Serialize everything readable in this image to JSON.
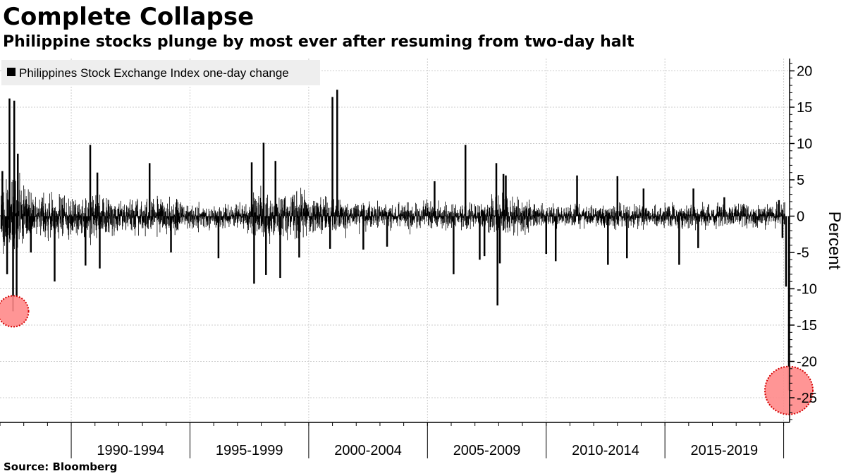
{
  "colors": {
    "series": "#000000",
    "grid": "#cccccc",
    "highlight_fill": "#ff8a8a",
    "highlight_stroke": "#d40000",
    "legend_bg": "#eeeeee"
  },
  "chart_data": {
    "type": "bar",
    "title": "Complete Collapse",
    "subtitle": "Philippine stocks plunge by most ever after resuming from two-day halt",
    "source": "Source:  Bloomberg",
    "legend": "Philippines Stock Exchange Index one-day change",
    "legend_position": "top-left",
    "ylabel": "Percent",
    "ylim": [
      -28,
      22
    ],
    "yticks": [
      20,
      15,
      10,
      5,
      0,
      -5,
      -10,
      -15,
      -20,
      -25
    ],
    "ytick_labels": [
      "20",
      "15",
      "10",
      "5",
      "0",
      "-5",
      "-10",
      "-15",
      "-20",
      "-25"
    ],
    "xlim": [
      1987.0,
      2020.25
    ],
    "x_period_boundaries": [
      1990,
      1995,
      2000,
      2005,
      2010,
      2015,
      2020
    ],
    "x_period_labels": [
      "1990-1994",
      "1995-1999",
      "2000-2004",
      "2005-2009",
      "2010-2014",
      "2015-2019"
    ],
    "grid": true,
    "typical_daily_range": [
      -2,
      2
    ],
    "notable_moves": [
      {
        "x": 1987.4,
        "value": 16.2
      },
      {
        "x": 1987.55,
        "value": -13.1
      },
      {
        "x": 1987.6,
        "value": 15.9
      },
      {
        "x": 1987.7,
        "value": -11.0
      },
      {
        "x": 1987.75,
        "value": 8.6
      },
      {
        "x": 1987.3,
        "value": -8.0
      },
      {
        "x": 1987.1,
        "value": 6.2
      },
      {
        "x": 1988.3,
        "value": -5.0
      },
      {
        "x": 1989.3,
        "value": -9.0
      },
      {
        "x": 1990.6,
        "value": -6.8
      },
      {
        "x": 1990.8,
        "value": 9.8
      },
      {
        "x": 1991.2,
        "value": -7.2
      },
      {
        "x": 1991.1,
        "value": 6.0
      },
      {
        "x": 1993.3,
        "value": 7.3
      },
      {
        "x": 1994.2,
        "value": -5.0
      },
      {
        "x": 1996.2,
        "value": -5.8
      },
      {
        "x": 1997.6,
        "value": 7.4
      },
      {
        "x": 1997.7,
        "value": -9.3
      },
      {
        "x": 1998.1,
        "value": 10.1
      },
      {
        "x": 1998.2,
        "value": -8.1
      },
      {
        "x": 1998.6,
        "value": 7.6
      },
      {
        "x": 1998.8,
        "value": -8.5
      },
      {
        "x": 1999.6,
        "value": -5.7
      },
      {
        "x": 2000.9,
        "value": -4.5
      },
      {
        "x": 2001.0,
        "value": 16.4
      },
      {
        "x": 2001.2,
        "value": 17.4
      },
      {
        "x": 2002.3,
        "value": -4.6
      },
      {
        "x": 2003.3,
        "value": -4.2
      },
      {
        "x": 2005.3,
        "value": 4.8
      },
      {
        "x": 2006.1,
        "value": -8.0
      },
      {
        "x": 2006.6,
        "value": 9.8
      },
      {
        "x": 2007.2,
        "value": -6.0
      },
      {
        "x": 2007.4,
        "value": -5.5
      },
      {
        "x": 2007.9,
        "value": 7.3
      },
      {
        "x": 2007.95,
        "value": -12.3
      },
      {
        "x": 2008.05,
        "value": -6.5
      },
      {
        "x": 2008.2,
        "value": 5.8
      },
      {
        "x": 2008.3,
        "value": 5.6
      },
      {
        "x": 2010.0,
        "value": -5.2
      },
      {
        "x": 2010.4,
        "value": -6.2
      },
      {
        "x": 2011.3,
        "value": 5.6
      },
      {
        "x": 2012.6,
        "value": -6.7
      },
      {
        "x": 2013.0,
        "value": 5.5
      },
      {
        "x": 2013.4,
        "value": -5.8
      },
      {
        "x": 2014.1,
        "value": 3.8
      },
      {
        "x": 2015.6,
        "value": -6.7
      },
      {
        "x": 2016.2,
        "value": 3.8
      },
      {
        "x": 2016.4,
        "value": -4.4
      },
      {
        "x": 2017.5,
        "value": 2.6
      },
      {
        "x": 2019.8,
        "value": 2.2
      },
      {
        "x": 2019.95,
        "value": -3.0
      },
      {
        "x": 2020.1,
        "value": -9.7
      },
      {
        "x": 2020.22,
        "value": -24.0
      }
    ],
    "highlights": [
      {
        "x": 1987.55,
        "value": -13.1,
        "size": "small"
      },
      {
        "x": 2020.22,
        "value": -24.0,
        "size": "large"
      }
    ]
  }
}
